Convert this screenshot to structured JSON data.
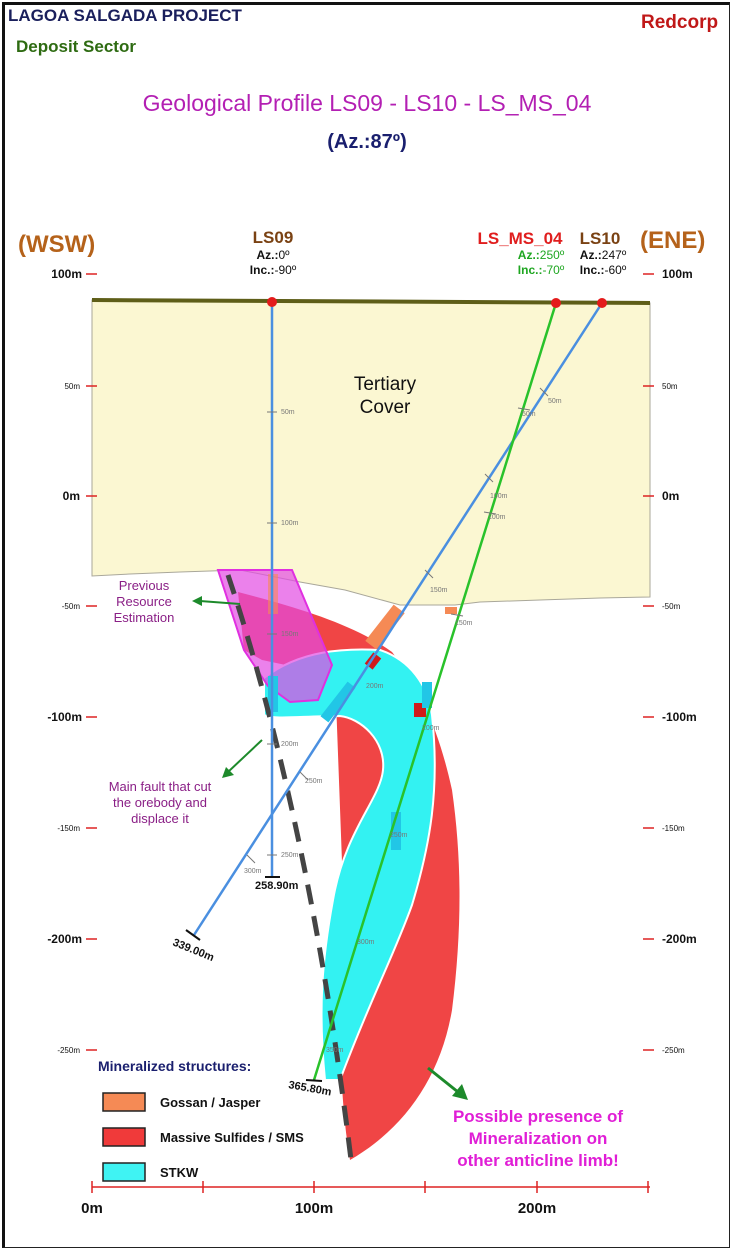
{
  "header": {
    "project": "LAGOA SALGADA PROJECT",
    "sector": "Deposit Sector",
    "company": "Redcorp",
    "title": "Geological Profile LS09 - LS10 -  LS_MS_04",
    "azimuth": "(Az.:87º)"
  },
  "orientation": {
    "west": "(WSW)",
    "east": "(ENE)"
  },
  "drillholes": [
    {
      "name": "LS09",
      "az_label": "Az.:",
      "az_value": "0º",
      "inc_label": "Inc.:",
      "inc_value": "-90º",
      "end_depth": "258.90m"
    },
    {
      "name": "LS_MS_04",
      "az_label": "Az.:",
      "az_value": "250º",
      "inc_label": "Inc.:",
      "inc_value": "-70º",
      "end_depth": "365.80m"
    },
    {
      "name": "LS10",
      "az_label": "Az.:",
      "az_value": "247º",
      "inc_label": "Inc.:",
      "inc_value": "-60º",
      "end_depth": "339.00m"
    }
  ],
  "depth_ticks": {
    "ls09": [
      "50m",
      "100m",
      "150m",
      "200m",
      "250m"
    ],
    "ls10": [
      "50m",
      "100m",
      "150m",
      "200m",
      "250m",
      "300m"
    ],
    "ls_ms_04": [
      "50m",
      "100m",
      "150m",
      "200m",
      "250m",
      "300m",
      "350m"
    ]
  },
  "elevation_axis": {
    "left": [
      "100m",
      "50m",
      "0m",
      "-50m",
      "-100m",
      "-150m",
      "-200m",
      "-250m"
    ],
    "right": [
      "100m",
      "50m",
      "0m",
      "-50m",
      "-100m",
      "-150m",
      "-200m",
      "-250m"
    ]
  },
  "distance_axis": [
    "0m",
    "100m",
    "200m"
  ],
  "labels": {
    "tertiary_line1": "Tertiary",
    "tertiary_line2": "Cover",
    "prev_resource": [
      "Previous",
      "Resource",
      "Estimation"
    ],
    "fault": [
      "Main fault that cut",
      "the orebody and",
      "displace it"
    ],
    "possible": [
      "Possible presence of",
      "Mineralization on",
      "other anticline limb!"
    ]
  },
  "legend": {
    "title": "Mineralized structures:",
    "items": [
      {
        "label": "Gossan / Jasper",
        "color": "#f58a55"
      },
      {
        "label": "Massive Sulfides / SMS",
        "color": "#f03a3a"
      },
      {
        "label": "STKW",
        "color": "#3ff3f3"
      }
    ]
  },
  "colors": {
    "tertiary": "#fbf7d2",
    "surface": "#5e5e18",
    "sms": "#f04545",
    "stkw": "#33f2f2",
    "resource": "#e24be3",
    "ls09_ls10_trace": "#4a8fe0",
    "ls_ms_04_trace": "#29c22b",
    "collar": "#e41b1b"
  }
}
